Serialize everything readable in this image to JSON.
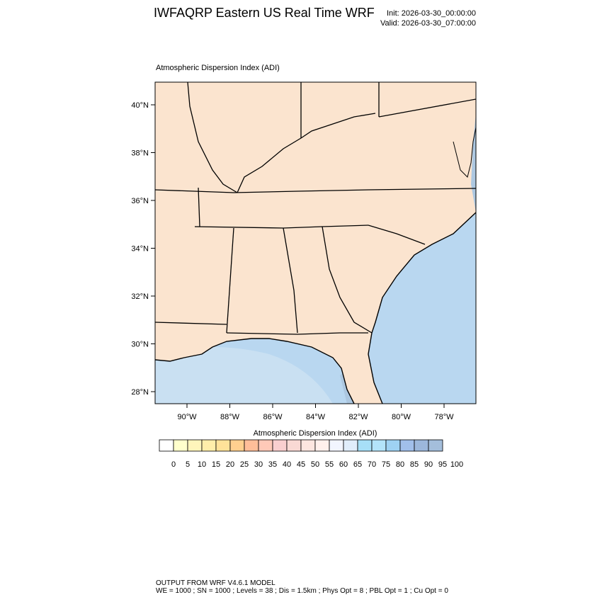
{
  "header": {
    "title": "IWFAQRP Eastern US Real Time WRF",
    "init": "Init: 2026-03-30_00:00:00",
    "valid": "Valid: 2026-03-30_07:00:00"
  },
  "plot": {
    "label": "Atmospheric Dispersion Index   (ADI)",
    "lat_labels": [
      "40°N",
      "38°N",
      "36°N",
      "34°N",
      "32°N",
      "30°N",
      "28°N"
    ],
    "lon_labels": [
      "90°W",
      "88°W",
      "86°W",
      "84°W",
      "82°W",
      "80°W",
      "78°W"
    ]
  },
  "colorbar": {
    "title": "Atmospheric Dispersion Index  (ADI)",
    "labels": [
      "0",
      "5",
      "10",
      "15",
      "20",
      "25",
      "30",
      "35",
      "40",
      "45",
      "50",
      "55",
      "60",
      "65",
      "70",
      "75",
      "80",
      "85",
      "90",
      "95",
      "100"
    ],
    "colors": [
      "#ffffff",
      "#ffffcc",
      "#fff5bb",
      "#ffeeaa",
      "#ffe299",
      "#ffd08f",
      "#ffbe99",
      "#ffc9b8",
      "#f9cfcf",
      "#f9d9d4",
      "#fde6e0",
      "#fff0ec",
      "#f2f5ff",
      "#e0edfb",
      "#a7dff7",
      "#b3e4fa",
      "#9ed2f3",
      "#a1bfea",
      "#9cb7db",
      "#a4bedb"
    ]
  },
  "footer": {
    "line1": "OUTPUT FROM WRF V4.6.1 MODEL",
    "line2": "WE = 1000 ; SN = 1000 ; Levels = 38 ; Dis = 1.5km ; Phys Opt = 8 ; PBL Opt = 1 ; Cu Opt = 0"
  },
  "colors": {
    "ocean": "#b9d7f0",
    "land_high": "#a9c3dc",
    "land_low": "#fbe4cf"
  }
}
